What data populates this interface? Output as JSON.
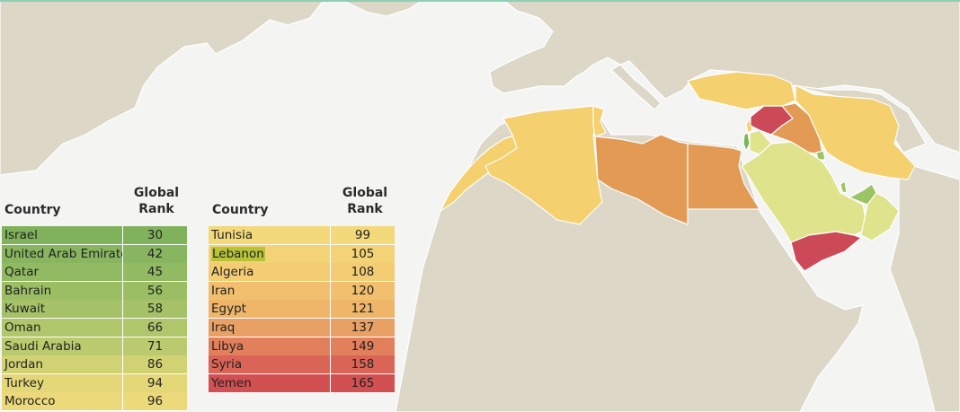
{
  "tables": [
    {
      "header": {
        "country": "Country",
        "rank_line1": "Global",
        "rank_line2": "Rank"
      },
      "rows": [
        {
          "country": "Israel",
          "rank": "30",
          "color": "#80b25c"
        },
        {
          "country": "United Arab Emirates",
          "rank": "42",
          "color": "#88b660"
        },
        {
          "country": "Qatar",
          "rank": "45",
          "color": "#91ba62"
        },
        {
          "country": "Bahrain",
          "rank": "56",
          "color": "#9bbe65"
        },
        {
          "country": "Kuwait",
          "rank": "58",
          "color": "#a5c268"
        },
        {
          "country": "Oman",
          "rank": "66",
          "color": "#b0c66b"
        },
        {
          "country": "Saudi Arabia",
          "rank": "71",
          "color": "#bbca6e"
        },
        {
          "country": "Jordan",
          "rank": "86",
          "color": "#d1d274"
        },
        {
          "country": "Turkey",
          "rank": "94",
          "color": "#e4d778"
        },
        {
          "country": "Morocco",
          "rank": "96",
          "color": "#ecd97a"
        }
      ]
    },
    {
      "header": {
        "country": "Country",
        "rank_line1": "Global",
        "rank_line2": "Rank"
      },
      "rows": [
        {
          "country": "Tunisia",
          "rank": "99",
          "color": "#f3d97a",
          "highlight": false
        },
        {
          "country": "Lebanon",
          "rank": "105",
          "color": "#f4d377",
          "highlight": true
        },
        {
          "country": "Algeria",
          "rank": "108",
          "color": "#f4cc74"
        },
        {
          "country": "Iran",
          "rank": "120",
          "color": "#f2bf6e"
        },
        {
          "country": "Egypt",
          "rank": "121",
          "color": "#efb66a"
        },
        {
          "country": "Iraq",
          "rank": "137",
          "color": "#e9a064"
        },
        {
          "country": "Libya",
          "rank": "149",
          "color": "#e27f5c"
        },
        {
          "country": "Syria",
          "rank": "158",
          "color": "#da6456"
        },
        {
          "country": "Yemen",
          "rank": "165",
          "color": "#d24f52"
        }
      ]
    }
  ],
  "colors": {
    "ocean": "#f4f4f2",
    "land": "#dcd7c6",
    "border": "#ffffff",
    "green": "#9cc465",
    "light_green": "#dfe38c",
    "yellow": "#f4d06f",
    "orange": "#e39a55",
    "red": "#cc4a57"
  }
}
